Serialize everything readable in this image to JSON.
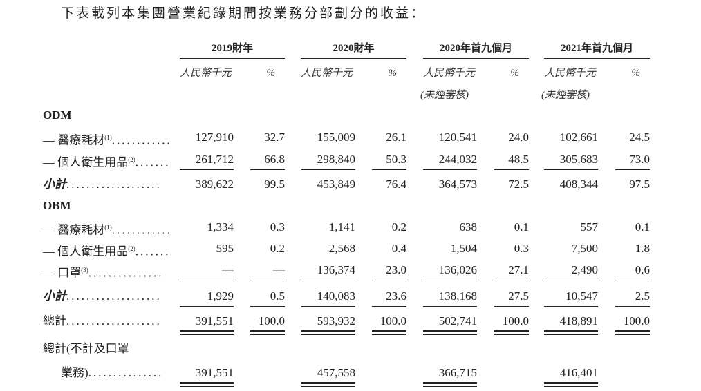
{
  "title": "下表載列本集團營業紀錄期間按業務分部劃分的收益：",
  "periods": [
    {
      "label": "2019財年",
      "amount_unit": "人民幣千元",
      "pct_unit": "%",
      "note": ""
    },
    {
      "label": "2020財年",
      "amount_unit": "人民幣千元",
      "pct_unit": "%",
      "note": ""
    },
    {
      "label": "2020年首九個月",
      "amount_unit": "人民幣千元",
      "pct_unit": "%",
      "note": "(未經審核)"
    },
    {
      "label": "2021年首九個月",
      "amount_unit": "人民幣千元",
      "pct_unit": "%",
      "note": "(未經審核)"
    }
  ],
  "rows": [
    {
      "type": "section",
      "label": "ODM"
    },
    {
      "type": "item",
      "label": "— 醫療耗材",
      "sup": "(1)",
      "dots": "............",
      "values": [
        "127,910",
        "32.7",
        "155,009",
        "26.1",
        "120,541",
        "24.0",
        "102,661",
        "24.5"
      ]
    },
    {
      "type": "item",
      "label": "— 個人衛生用品",
      "sup": "(2)",
      "dots": ".......",
      "values": [
        "261,712",
        "66.8",
        "298,840",
        "50.3",
        "244,032",
        "48.5",
        "305,683",
        "73.0"
      ]
    },
    {
      "type": "subtotal",
      "label": "小計",
      "sup": "",
      "dots": "...................",
      "values": [
        "389,622",
        "99.5",
        "453,849",
        "76.4",
        "364,573",
        "72.5",
        "408,344",
        "97.5"
      ]
    },
    {
      "type": "section",
      "label": "OBM"
    },
    {
      "type": "item",
      "label": "— 醫療耗材",
      "sup": "(1)",
      "dots": "............",
      "values": [
        "1,334",
        "0.3",
        "1,141",
        "0.2",
        "638",
        "0.1",
        "557",
        "0.1"
      ]
    },
    {
      "type": "item",
      "label": "— 個人衛生用品",
      "sup": "(2)",
      "dots": ".......",
      "values": [
        "595",
        "0.2",
        "2,568",
        "0.4",
        "1,504",
        "0.3",
        "7,500",
        "1.8"
      ]
    },
    {
      "type": "item",
      "label": "— 口罩",
      "sup": "(3)",
      "dots": "...............",
      "values": [
        "—",
        "—",
        "136,374",
        "23.0",
        "136,026",
        "27.1",
        "2,490",
        "0.6"
      ]
    },
    {
      "type": "subtotal",
      "label": "小計",
      "sup": "",
      "dots": "...................",
      "values": [
        "1,929",
        "0.5",
        "140,083",
        "23.6",
        "138,168",
        "27.5",
        "10,547",
        "2.5"
      ]
    },
    {
      "type": "total",
      "label": "總計",
      "sup": "",
      "dots": "...................",
      "values": [
        "391,551",
        "100.0",
        "593,932",
        "100.0",
        "502,741",
        "100.0",
        "418,891",
        "100.0"
      ]
    },
    {
      "type": "total2",
      "label": "總計(不計及口罩",
      "label2": "業務)",
      "sup": "",
      "dots": "...............",
      "values": [
        "391,551",
        "",
        "457,558",
        "",
        "366,715",
        "",
        "416,401",
        ""
      ]
    }
  ]
}
